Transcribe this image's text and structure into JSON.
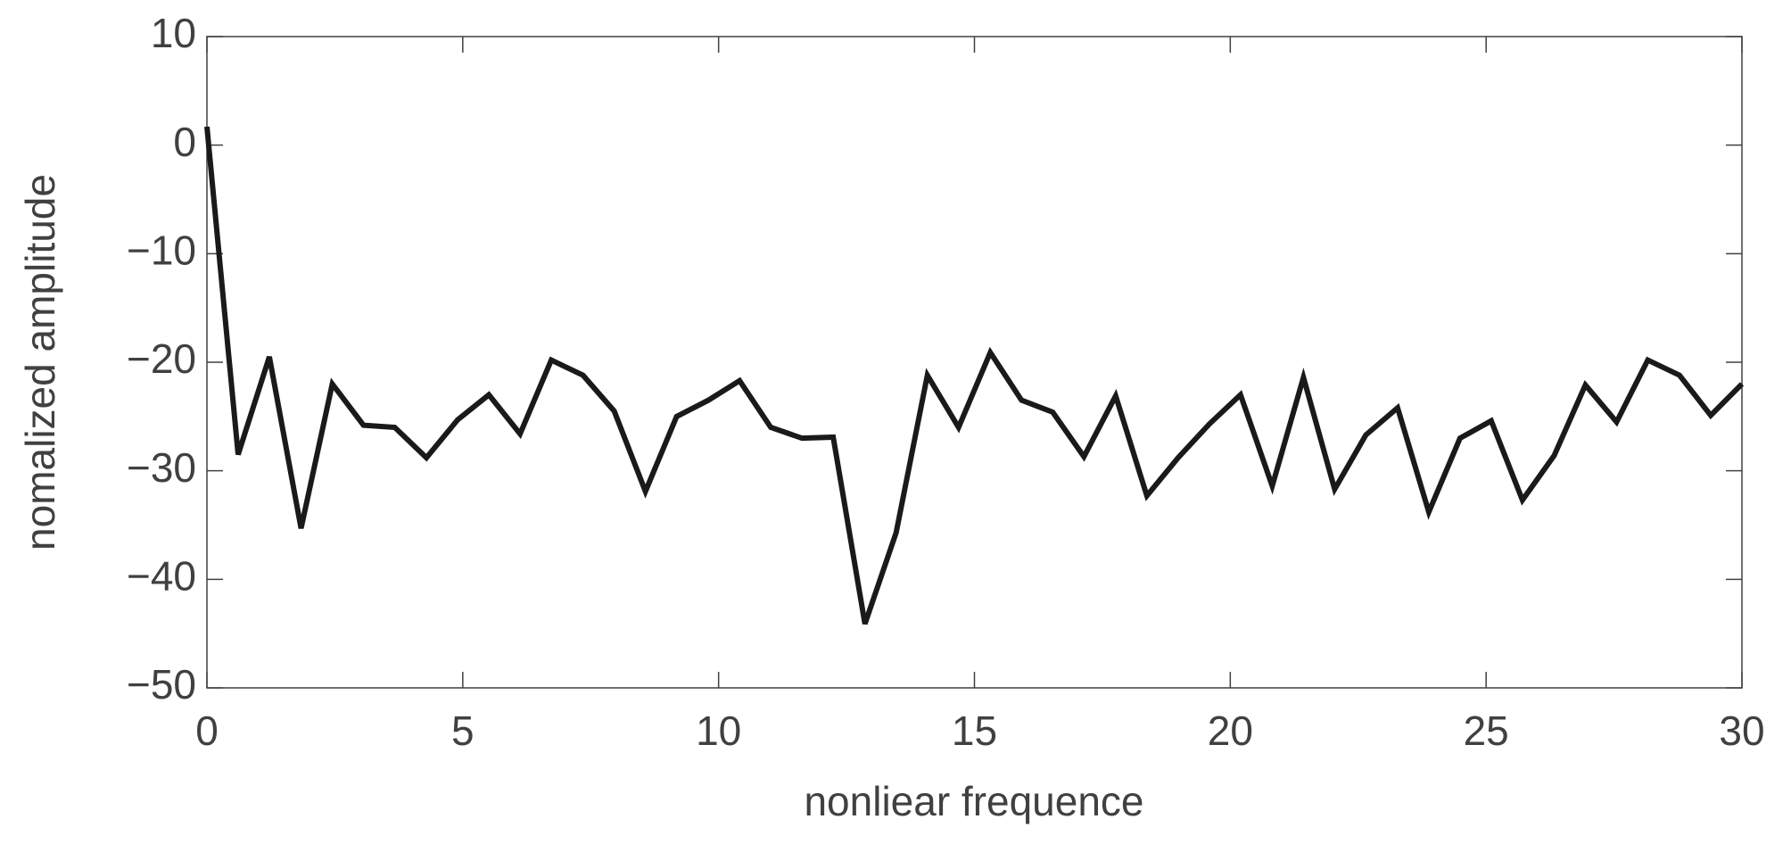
{
  "chart_data": {
    "type": "line",
    "x_label": "nonliear frequence",
    "y_label": "nomalized amplitude",
    "x": [
      0,
      0.61,
      1.22,
      1.84,
      2.45,
      3.06,
      3.67,
      4.29,
      4.9,
      5.51,
      6.12,
      6.73,
      7.35,
      7.96,
      8.57,
      9.18,
      9.8,
      10.41,
      11.02,
      11.63,
      12.24,
      12.86,
      13.47,
      14.08,
      14.69,
      15.31,
      15.92,
      16.53,
      17.14,
      17.76,
      18.37,
      18.98,
      19.59,
      20.2,
      20.82,
      21.43,
      22.04,
      22.65,
      23.27,
      23.88,
      24.49,
      25.1,
      25.71,
      26.33,
      26.94,
      27.55,
      28.16,
      28.78,
      29.39,
      30
    ],
    "series": [
      {
        "color": "#1a1a1a",
        "values": [
          1.7,
          -28.5,
          -19.5,
          -35.3,
          -22,
          -25.8,
          -26,
          -28.8,
          -25.3,
          -23,
          -26.6,
          -19.8,
          -21.2,
          -24.5,
          -31.9,
          -25,
          -23.5,
          -21.7,
          -26,
          -27,
          -26.9,
          -44.1,
          -35.7,
          -21.2,
          -26,
          -19.1,
          -23.5,
          -24.6,
          -28.7,
          -23.1,
          -32.3,
          -28.8,
          -25.7,
          -23,
          -31.4,
          -21.4,
          -31.7,
          -26.7,
          -24.2,
          -33.8,
          -27,
          -25.4,
          -32.7,
          -28.6,
          -22.1,
          -25.5,
          -19.8,
          -21.2,
          -24.9,
          -22
        ]
      }
    ],
    "xlim": [
      0,
      30
    ],
    "xticks": [
      0,
      5,
      10,
      15,
      20,
      25,
      30
    ],
    "ylim": [
      -50,
      10
    ],
    "yticks": [
      {
        "value": -50,
        "label": "−50"
      },
      {
        "value": -40,
        "label": "−40"
      },
      {
        "value": -30,
        "label": "−30"
      },
      {
        "value": -20,
        "label": "−20"
      },
      {
        "value": -10,
        "label": "−10"
      },
      0,
      10
    ],
    "grid": false
  }
}
